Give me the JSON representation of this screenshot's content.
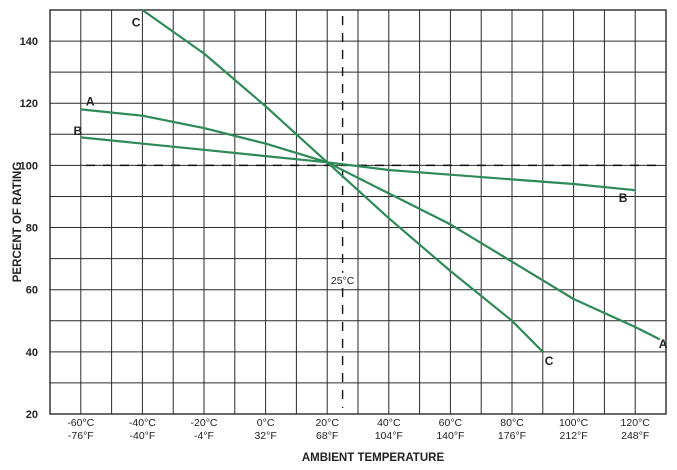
{
  "chart_data": {
    "type": "line",
    "title": "",
    "xlabel": "AMBIENT TEMPERATURE",
    "ylabel": "PERCENT OF RATING",
    "x_unit": "°C",
    "xlim": [
      -70,
      130
    ],
    "ylim": [
      20,
      150
    ],
    "grid": true,
    "legend": "curve letters labeled at line ends",
    "x_ticks": [
      {
        "c": -60,
        "label_c": "-60°C",
        "label_f": "-76°F"
      },
      {
        "c": -40,
        "label_c": "-40°C",
        "label_f": "-40°F"
      },
      {
        "c": -20,
        "label_c": "-20°C",
        "label_f": "-4°F"
      },
      {
        "c": 0,
        "label_c": "0°C",
        "label_f": "32°F"
      },
      {
        "c": 20,
        "label_c": "20°C",
        "label_f": "68°F"
      },
      {
        "c": 40,
        "label_c": "40°C",
        "label_f": "104°F"
      },
      {
        "c": 60,
        "label_c": "60°C",
        "label_f": "140°F"
      },
      {
        "c": 80,
        "label_c": "80°C",
        "label_f": "176°F"
      },
      {
        "c": 100,
        "label_c": "100°C",
        "label_f": "212°F"
      },
      {
        "c": 120,
        "label_c": "120°C",
        "label_f": "248°F"
      }
    ],
    "y_ticks": [
      20,
      40,
      60,
      80,
      100,
      120,
      140
    ],
    "reference_lines": [
      {
        "orientation": "horizontal",
        "y": 100,
        "style": "dashed"
      },
      {
        "orientation": "vertical",
        "x": 25,
        "style": "dashed",
        "label": "25°C"
      }
    ],
    "series": [
      {
        "name": "A",
        "color": "#2e8b57",
        "points": [
          [
            -60,
            118
          ],
          [
            -40,
            116
          ],
          [
            -20,
            112
          ],
          [
            0,
            107
          ],
          [
            20,
            101
          ],
          [
            40,
            91
          ],
          [
            60,
            81
          ],
          [
            80,
            69
          ],
          [
            100,
            57
          ],
          [
            120,
            48
          ],
          [
            128,
            44
          ]
        ]
      },
      {
        "name": "B",
        "color": "#2e8b57",
        "points": [
          [
            -60,
            109
          ],
          [
            -20,
            105
          ],
          [
            0,
            103
          ],
          [
            20,
            101
          ],
          [
            40,
            98.5
          ],
          [
            60,
            97
          ],
          [
            80,
            95.5
          ],
          [
            100,
            94
          ],
          [
            120,
            92
          ]
        ]
      },
      {
        "name": "C",
        "color": "#2e8b57",
        "points": [
          [
            -40,
            150
          ],
          [
            -20,
            136
          ],
          [
            0,
            119
          ],
          [
            20,
            101
          ],
          [
            40,
            83
          ],
          [
            60,
            66
          ],
          [
            80,
            50
          ],
          [
            90,
            40
          ]
        ]
      }
    ],
    "annotations": [
      "25°C"
    ]
  }
}
